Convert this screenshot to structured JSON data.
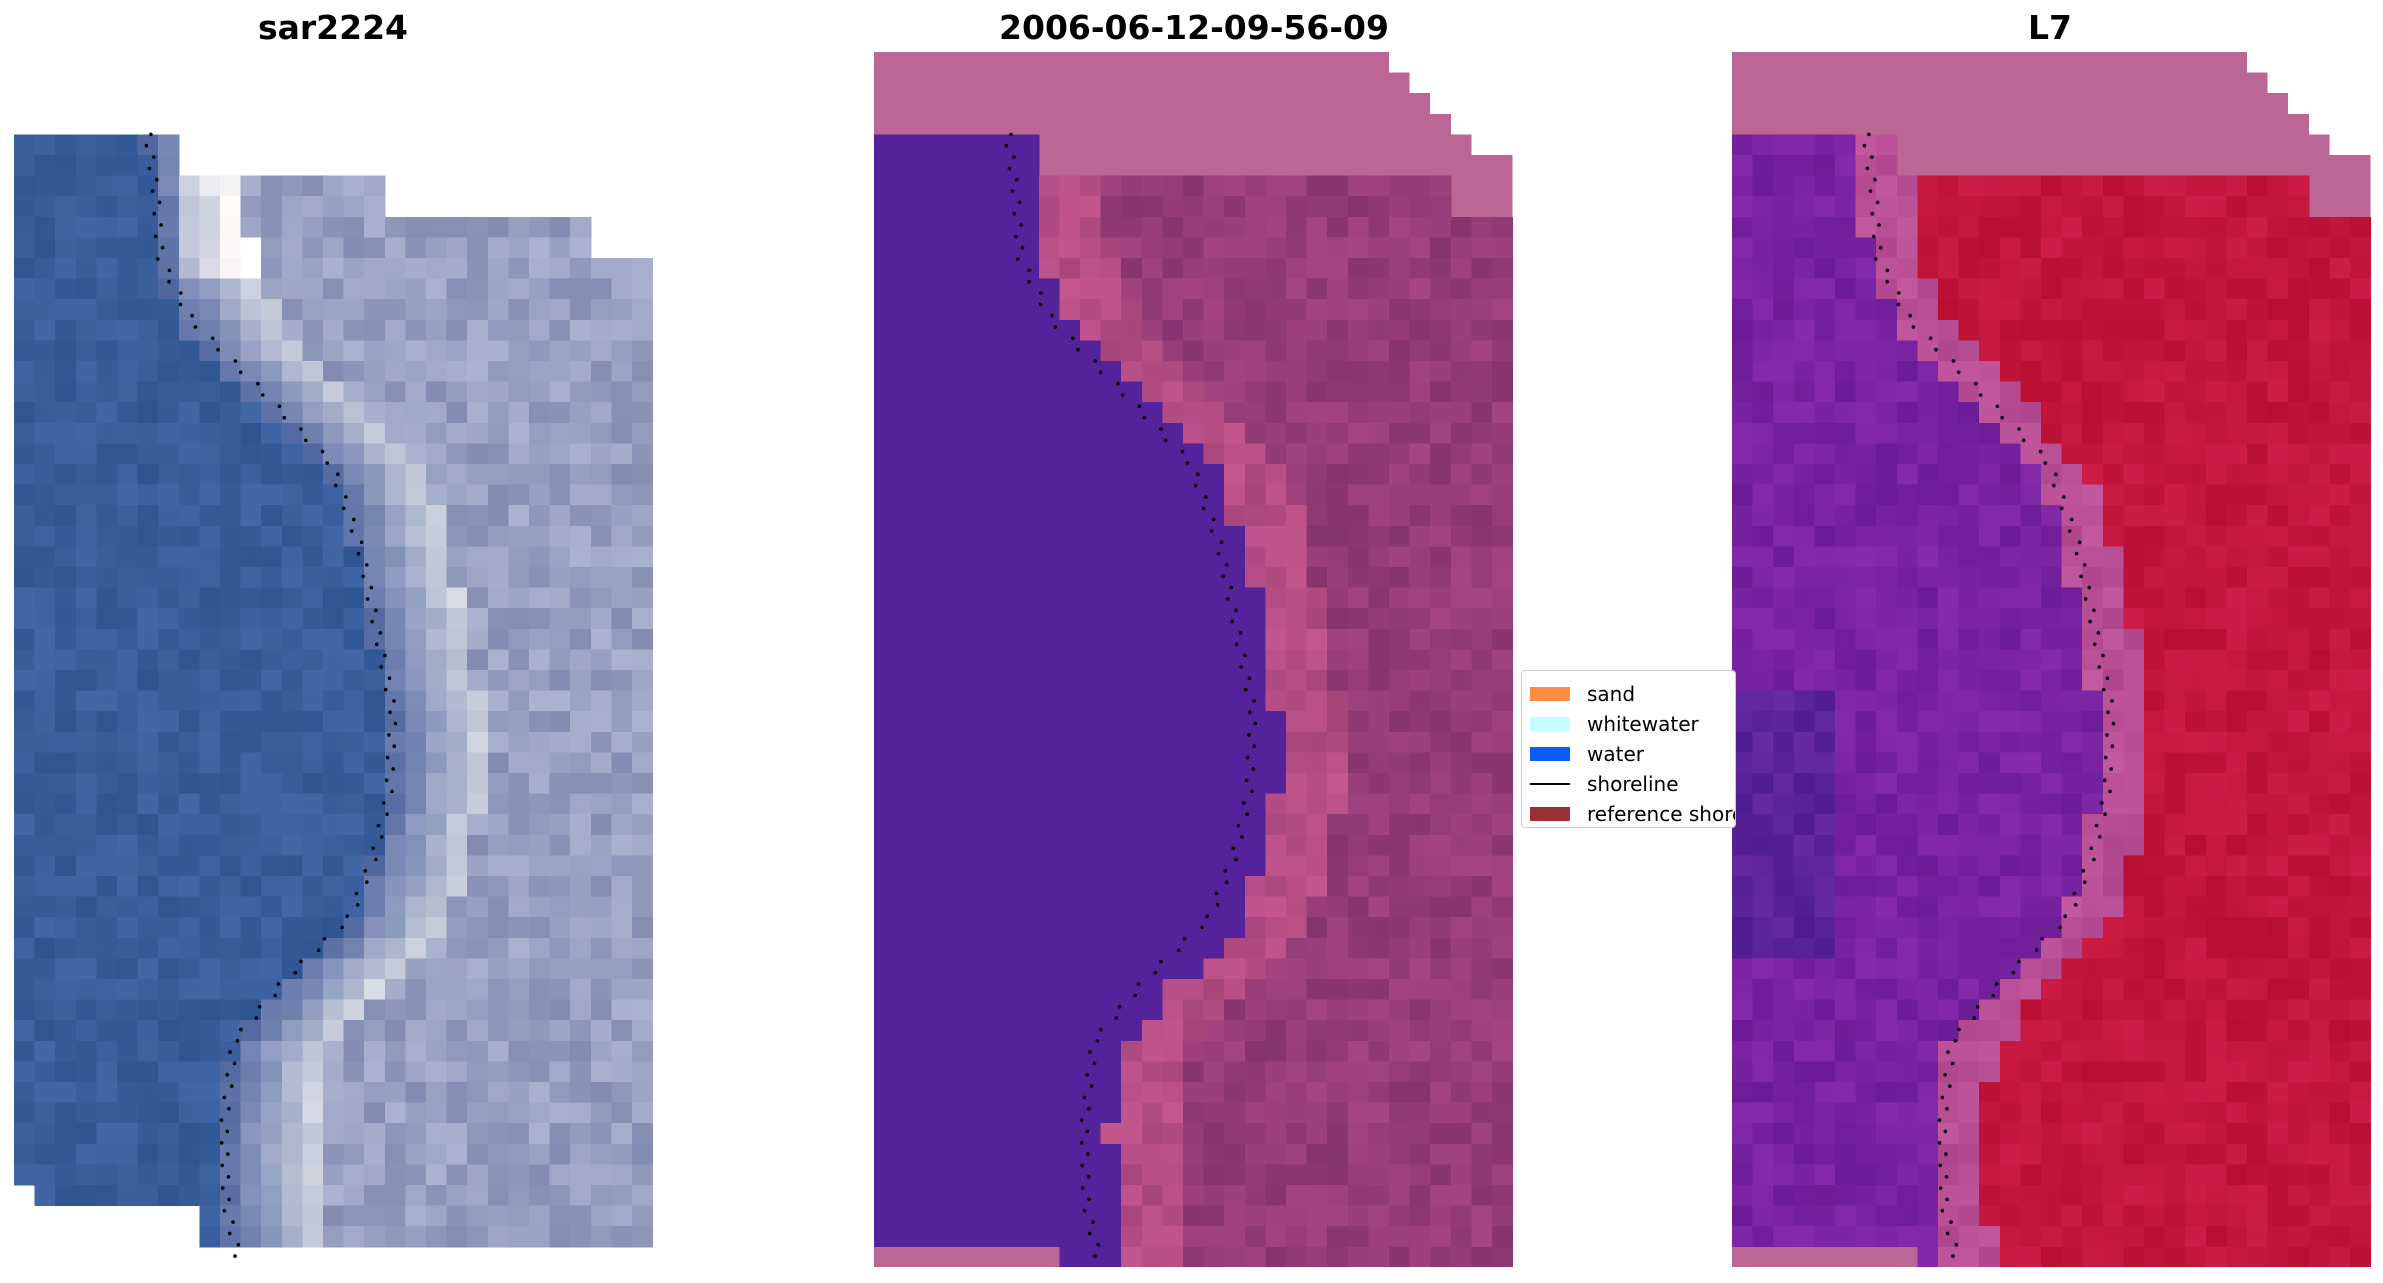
{
  "panels": [
    {
      "title": "sar2224",
      "kind": "rgb"
    },
    {
      "title": "2006-06-12-09-56-09",
      "kind": "classified"
    },
    {
      "title": "L7",
      "kind": "index"
    }
  ],
  "legend": {
    "items": [
      {
        "label": "sand",
        "color": "#ff8c42",
        "kind": "patch"
      },
      {
        "label": "whitewater",
        "color": "#c6fbff",
        "kind": "patch"
      },
      {
        "label": "water",
        "color": "#0a5cf2",
        "kind": "patch"
      },
      {
        "label": "shoreline",
        "color": "#000000",
        "kind": "line"
      },
      {
        "label": "reference shoreline",
        "color": "#9a2f36",
        "kind": "patch"
      }
    ]
  },
  "colors": {
    "nodata_pink": "#bb6694",
    "classified_water": "#54229a",
    "rgb_water": "#3b63a0",
    "rgb_land": "#aab3cc",
    "index_land": "#c81d48",
    "index_water": "#7d2b9e",
    "shoreline_dots": "#000000"
  }
}
